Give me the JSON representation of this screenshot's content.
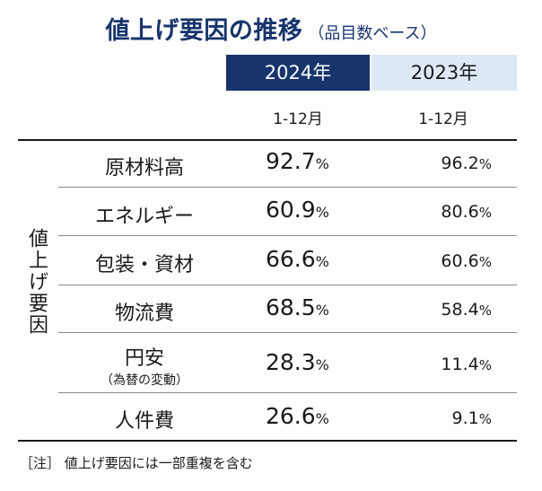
{
  "title": "値上げ要因の推移",
  "subtitle": "（品目数ベース）",
  "side_label": "値上げ要因",
  "footnote": "［注］ 値上げ要因には一部重複を含む",
  "chart_data": {
    "type": "table",
    "title": "値上げ要因の推移（品目数ベース）",
    "columns": [
      {
        "year": "2024年",
        "period": "1-12月"
      },
      {
        "year": "2023年",
        "period": "1-12月"
      }
    ],
    "unit": "%",
    "rows": [
      {
        "label": "原材料高",
        "note": "",
        "values": [
          "92.7",
          "96.2"
        ]
      },
      {
        "label": "エネルギー",
        "note": "",
        "values": [
          "60.9",
          "80.6"
        ]
      },
      {
        "label": "包装・資材",
        "note": "",
        "values": [
          "66.6",
          "60.6"
        ]
      },
      {
        "label": "物流費",
        "note": "",
        "values": [
          "68.5",
          "58.4"
        ]
      },
      {
        "label": "円安",
        "note": "（為替の変動）",
        "values": [
          "28.3",
          "11.4"
        ]
      },
      {
        "label": "人件費",
        "note": "",
        "values": [
          "26.6",
          "9.1"
        ]
      }
    ]
  }
}
